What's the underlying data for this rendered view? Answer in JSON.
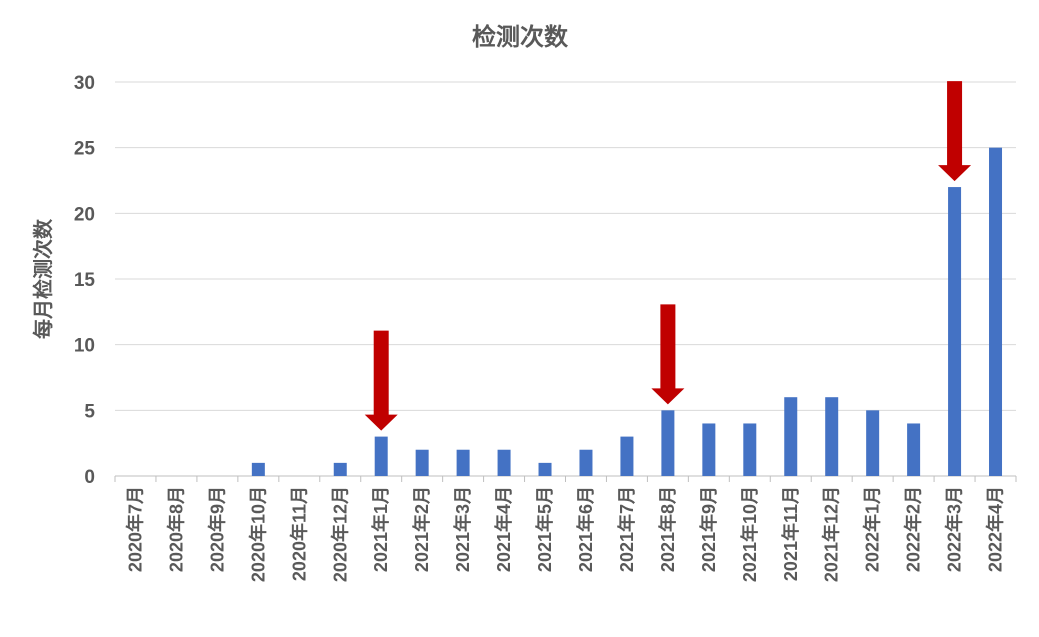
{
  "chart_data": {
    "type": "bar",
    "title": "检测次数",
    "ylabel": "每月检测次数",
    "xlabel": "",
    "ylim": [
      0,
      30
    ],
    "yticks": [
      0,
      5,
      10,
      15,
      20,
      25,
      30
    ],
    "grid": true,
    "bar_color": "#4472C4",
    "arrow_color": "#C00000",
    "categories": [
      "2020年7月",
      "2020年8月",
      "2020年9月",
      "2020年10月",
      "2020年11月",
      "2020年12月",
      "2021年1月",
      "2021年2月",
      "2021年3月",
      "2021年4月",
      "2021年5月",
      "2021年6月",
      "2021年7月",
      "2021年8月",
      "2021年9月",
      "2021年10月",
      "2021年11月",
      "2021年12月",
      "2022年1月",
      "2022年2月",
      "2022年3月",
      "2022年4月"
    ],
    "values": [
      0,
      0,
      0,
      1,
      0,
      1,
      3,
      2,
      2,
      2,
      1,
      2,
      3,
      5,
      4,
      4,
      6,
      6,
      5,
      4,
      22,
      25
    ],
    "annotations": [
      {
        "type": "arrow-down",
        "category": "2021年1月"
      },
      {
        "type": "arrow-down",
        "category": "2021年8月"
      },
      {
        "type": "arrow-down",
        "category": "2022年3月"
      }
    ]
  }
}
